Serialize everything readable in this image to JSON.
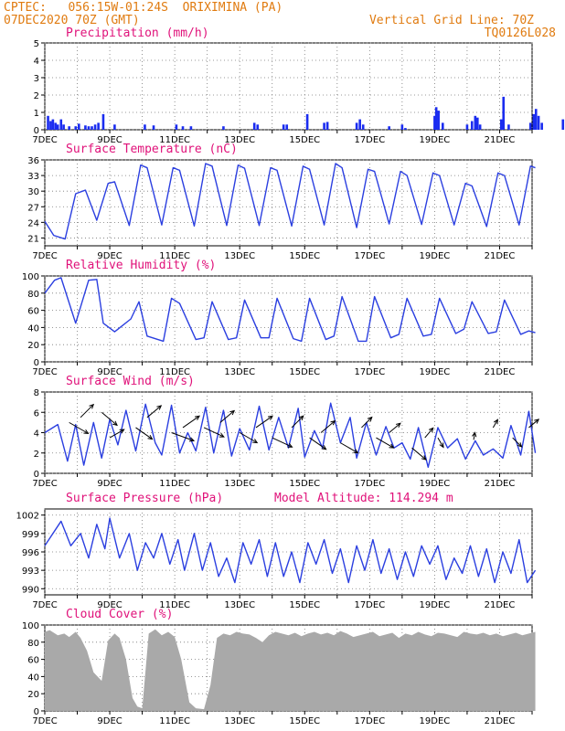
{
  "header": {
    "line1_left": "CPTEC:   056:15W-01:24S  ORIXIMINA (PA)",
    "line2_left": "07DEC2020 70Z (GMT)",
    "line2_right": "Vertical Grid Line: 70Z",
    "line3_right": "TQ0126L028",
    "model_altitude": "Model Altitude: 114.294 m"
  },
  "colors": {
    "header": "#e07b10",
    "title": "#e0127a",
    "line": "#2b3fe0",
    "bar": "#1a2cf0",
    "cloud": "#a9a9a9"
  },
  "x_ticks": [
    "7DEC",
    "9DEC",
    "11DEC",
    "13DEC",
    "15DEC",
    "17DEC",
    "19DEC",
    "21DEC"
  ],
  "chart_data": [
    {
      "id": "precip",
      "type": "bar",
      "title": "Precipitation (mm/h)",
      "x_range_days": [
        0,
        15
      ],
      "ylim": [
        0,
        5
      ],
      "y_ticks": [
        "0",
        "1",
        "2",
        "3",
        "4",
        "5"
      ],
      "events": [
        [
          0.1,
          0.8
        ],
        [
          0.18,
          0.5
        ],
        [
          0.25,
          0.6
        ],
        [
          0.33,
          0.4
        ],
        [
          0.4,
          0.3
        ],
        [
          0.5,
          0.6
        ],
        [
          0.58,
          0.3
        ],
        [
          0.75,
          0.2
        ],
        [
          0.95,
          0.2
        ],
        [
          1.05,
          0.35
        ],
        [
          1.25,
          0.25
        ],
        [
          1.35,
          0.2
        ],
        [
          1.45,
          0.2
        ],
        [
          1.55,
          0.3
        ],
        [
          1.65,
          0.4
        ],
        [
          1.8,
          0.9
        ],
        [
          2.15,
          0.3
        ],
        [
          3.08,
          0.3
        ],
        [
          3.35,
          0.25
        ],
        [
          4.05,
          0.3
        ],
        [
          4.25,
          0.2
        ],
        [
          4.5,
          0.2
        ],
        [
          5.5,
          0.2
        ],
        [
          6.45,
          0.4
        ],
        [
          6.55,
          0.3
        ],
        [
          7.35,
          0.3
        ],
        [
          7.45,
          0.3
        ],
        [
          8.08,
          0.9
        ],
        [
          8.6,
          0.4
        ],
        [
          8.7,
          0.45
        ],
        [
          9.6,
          0.4
        ],
        [
          9.7,
          0.6
        ],
        [
          9.8,
          0.3
        ],
        [
          10.6,
          0.2
        ],
        [
          11.0,
          0.3
        ],
        [
          11.1,
          0.1
        ],
        [
          12.0,
          0.8
        ],
        [
          12.05,
          1.3
        ],
        [
          12.12,
          1.1
        ],
        [
          12.25,
          0.4
        ],
        [
          13.0,
          0.3
        ],
        [
          13.15,
          0.5
        ],
        [
          13.25,
          0.8
        ],
        [
          13.32,
          0.7
        ],
        [
          13.4,
          0.3
        ],
        [
          14.05,
          0.6
        ],
        [
          14.12,
          1.9
        ],
        [
          14.28,
          0.3
        ],
        [
          14.95,
          0.4
        ],
        [
          15.05,
          0.9
        ],
        [
          15.12,
          1.2
        ],
        [
          15.2,
          0.8
        ],
        [
          15.3,
          0.4
        ],
        [
          15.95,
          0.6
        ],
        [
          16.05,
          1.3
        ],
        [
          16.12,
          0.8
        ],
        [
          16.3,
          0.3
        ],
        [
          16.95,
          0.5
        ],
        [
          17.05,
          1.1
        ],
        [
          17.2,
          0.5
        ],
        [
          17.35,
          0.2
        ],
        [
          18.1,
          0.9
        ],
        [
          18.17,
          1.2
        ],
        [
          18.5,
          0.3
        ],
        [
          18.75,
          0.2
        ],
        [
          19.0,
          0.3
        ],
        [
          19.05,
          0.9
        ],
        [
          19.25,
          0.4
        ],
        [
          19.6,
          0.5
        ],
        [
          19.95,
          0.3
        ],
        [
          20.05,
          2.1
        ],
        [
          20.12,
          1.4
        ],
        [
          20.2,
          0.6
        ],
        [
          20.4,
          0.3
        ],
        [
          21.0,
          0.4
        ],
        [
          21.08,
          0.7
        ],
        [
          21.15,
          0.5
        ]
      ]
    },
    {
      "id": "temp",
      "type": "line",
      "title": "Surface Temperature (nC)",
      "ylim": [
        19.5,
        36
      ],
      "y_ticks": [
        "21",
        "24",
        "27",
        "30",
        "33",
        "36"
      ],
      "x": [
        0,
        0.55,
        1.25,
        1.9,
        2.5,
        3.2,
        3.9,
        4.3,
        5.2,
        5.9,
        6.3,
        7.2,
        7.9,
        8.3,
        9.2,
        9.9,
        10.3,
        11.2,
        11.9,
        12.3,
        13.2,
        13.9,
        14.3,
        15.2,
        15.9,
        16.3,
        17.2,
        17.9,
        18.3,
        19.2,
        19.9,
        20.3,
        21.2,
        21.9,
        22.3,
        23.2,
        23.9,
        24.3,
        25.2,
        25.9,
        26.3,
        27.2,
        27.9,
        28.3,
        29.2,
        29.9,
        30.2
      ],
      "values": [
        24.2,
        21.5,
        20.8,
        29.5,
        30.2,
        24.4,
        31.5,
        31.8,
        23.4,
        35.0,
        34.5,
        23.5,
        34.5,
        34.0,
        23.3,
        35.3,
        34.8,
        23.4,
        35.0,
        34.4,
        23.4,
        34.5,
        34.0,
        23.3,
        34.8,
        34.2,
        23.5,
        35.3,
        34.5,
        23.0,
        34.2,
        33.8,
        23.7,
        33.8,
        33.0,
        23.6,
        33.5,
        33.0,
        23.5,
        31.5,
        31.0,
        23.2,
        33.5,
        33.0,
        23.5,
        34.8,
        34.5
      ]
    },
    {
      "id": "rh",
      "type": "line",
      "title": "Relative Humidity (%)",
      "ylim": [
        0,
        100
      ],
      "y_ticks": [
        "0",
        "20",
        "40",
        "60",
        "80",
        "100"
      ],
      "x": [
        0,
        0.6,
        1.0,
        1.9,
        2.7,
        3.2,
        3.6,
        4.3,
        5.3,
        5.8,
        6.3,
        7.3,
        7.8,
        8.3,
        9.3,
        9.8,
        10.3,
        11.3,
        11.8,
        12.3,
        13.3,
        13.8,
        14.3,
        15.3,
        15.8,
        16.3,
        17.3,
        17.8,
        18.3,
        19.3,
        19.8,
        20.3,
        21.3,
        21.8,
        22.3,
        23.3,
        23.8,
        24.3,
        25.3,
        25.8,
        26.3,
        27.3,
        27.8,
        28.3,
        29.3,
        29.8,
        30.2
      ],
      "values": [
        80,
        95,
        98,
        45,
        95,
        96,
        45,
        35,
        50,
        70,
        30,
        24,
        74,
        68,
        26,
        28,
        70,
        26,
        28,
        72,
        28,
        28,
        74,
        27,
        24,
        74,
        26,
        30,
        76,
        24,
        24,
        76,
        28,
        32,
        74,
        30,
        32,
        74,
        33,
        38,
        70,
        33,
        35,
        72,
        32,
        36,
        34
      ]
    },
    {
      "id": "wind",
      "type": "line",
      "title": "Surface Wind (m/s)",
      "ylim": [
        0,
        8
      ],
      "y_ticks": [
        "0",
        "2",
        "4",
        "6",
        "8"
      ],
      "x": [
        0,
        0.8,
        1.4,
        1.9,
        2.4,
        3.0,
        3.5,
        4.0,
        4.5,
        5.0,
        5.6,
        6.2,
        6.8,
        7.2,
        7.8,
        8.3,
        8.8,
        9.3,
        9.9,
        10.4,
        11.0,
        11.5,
        12.0,
        12.6,
        13.2,
        13.8,
        14.4,
        15.0,
        15.6,
        16.0,
        16.6,
        17.1,
        17.6,
        18.2,
        18.8,
        19.2,
        19.8,
        20.4,
        21.0,
        21.5,
        22.0,
        22.5,
        23.0,
        23.6,
        24.2,
        24.8,
        25.4,
        25.9,
        26.5,
        27.0,
        27.6,
        28.2,
        28.7,
        29.3,
        29.8,
        30.2
      ],
      "values": [
        4.0,
        4.8,
        1.2,
        4.8,
        0.8,
        5.0,
        1.5,
        5.3,
        2.8,
        6.2,
        2.2,
        6.8,
        3.0,
        1.8,
        6.7,
        2.0,
        4.0,
        2.2,
        6.5,
        2.0,
        6.2,
        1.7,
        4.4,
        2.3,
        6.6,
        2.3,
        5.5,
        2.5,
        6.4,
        1.6,
        4.2,
        2.5,
        6.9,
        3.0,
        5.5,
        1.5,
        5.0,
        1.8,
        4.6,
        2.5,
        3.0,
        1.4,
        4.5,
        0.6,
        4.5,
        2.5,
        3.4,
        1.4,
        3.2,
        1.8,
        2.4,
        1.5,
        4.7,
        1.8,
        6.1,
        2.0
      ]
    },
    {
      "id": "pres",
      "type": "line",
      "title": "Surface Pressure (hPa)",
      "ylim": [
        989,
        1003
      ],
      "y_ticks": [
        "990",
        "993",
        "996",
        "999",
        "1002"
      ],
      "x": [
        0,
        1.0,
        1.6,
        2.2,
        2.7,
        3.2,
        3.7,
        4.0,
        4.6,
        5.2,
        5.7,
        6.2,
        6.7,
        7.2,
        7.7,
        8.2,
        8.6,
        9.2,
        9.7,
        10.2,
        10.7,
        11.2,
        11.7,
        12.2,
        12.7,
        13.2,
        13.7,
        14.2,
        14.7,
        15.2,
        15.7,
        16.2,
        16.7,
        17.2,
        17.7,
        18.2,
        18.7,
        19.2,
        19.7,
        20.2,
        20.7,
        21.2,
        21.7,
        22.2,
        22.7,
        23.2,
        23.7,
        24.2,
        24.7,
        25.2,
        25.7,
        26.2,
        26.7,
        27.2,
        27.7,
        28.2,
        28.7,
        29.2,
        29.7,
        30.2
      ],
      "values": [
        997,
        1001,
        997,
        999,
        995,
        1000.5,
        996.5,
        1001.5,
        995,
        999,
        993,
        997.5,
        995,
        999,
        994,
        998,
        993,
        999,
        993,
        997.5,
        992,
        995,
        991,
        997.5,
        994,
        998,
        992,
        997.5,
        992,
        996,
        991,
        997.5,
        994,
        998,
        992.5,
        996.5,
        991,
        997,
        993,
        998,
        992.5,
        996.5,
        991.5,
        996,
        992,
        997,
        994,
        997,
        991.5,
        995,
        992.5,
        997,
        992,
        996.5,
        991,
        996,
        992.5,
        998,
        991,
        993
      ]
    },
    {
      "id": "cloud",
      "type": "area",
      "title": "Cloud Cover (%)",
      "ylim": [
        0,
        100
      ],
      "y_ticks": [
        "0",
        "20",
        "40",
        "60",
        "80",
        "100"
      ],
      "x": [
        0,
        0.3,
        0.8,
        1.2,
        1.5,
        1.9,
        2.2,
        2.6,
        3.0,
        3.5,
        3.9,
        4.3,
        4.6,
        5.0,
        5.4,
        5.7,
        6.0,
        6.4,
        6.8,
        7.2,
        7.6,
        8.0,
        8.4,
        8.9,
        9.3,
        9.8,
        10.2,
        10.6,
        11.0,
        11.4,
        11.8,
        12.2,
        12.6,
        13.0,
        13.4,
        13.8,
        14.2,
        14.6,
        15.0,
        15.4,
        15.8,
        16.2,
        16.6,
        17.0,
        17.4,
        17.8,
        18.2,
        18.6,
        19.0,
        19.4,
        19.8,
        20.2,
        20.6,
        21.0,
        21.4,
        21.8,
        22.2,
        22.6,
        23.0,
        23.4,
        23.8,
        24.2,
        24.6,
        25.0,
        25.4,
        25.8,
        26.2,
        26.6,
        27.0,
        27.4,
        27.8,
        28.2,
        28.6,
        29.0,
        29.4,
        29.8,
        30.2
      ],
      "values": [
        92,
        94,
        88,
        90,
        86,
        92,
        85,
        70,
        45,
        35,
        82,
        90,
        85,
        60,
        15,
        5,
        3,
        90,
        95,
        88,
        92,
        86,
        60,
        10,
        3,
        2,
        30,
        85,
        90,
        88,
        92,
        90,
        89,
        85,
        80,
        88,
        92,
        90,
        88,
        91,
        87,
        90,
        92,
        89,
        91,
        88,
        93,
        90,
        86,
        88,
        90,
        92,
        87,
        89,
        91,
        85,
        90,
        88,
        92,
        89,
        87,
        91,
        90,
        88,
        86,
        92,
        90,
        89,
        91,
        88,
        90,
        87,
        89,
        91,
        88,
        90,
        92
      ]
    }
  ]
}
